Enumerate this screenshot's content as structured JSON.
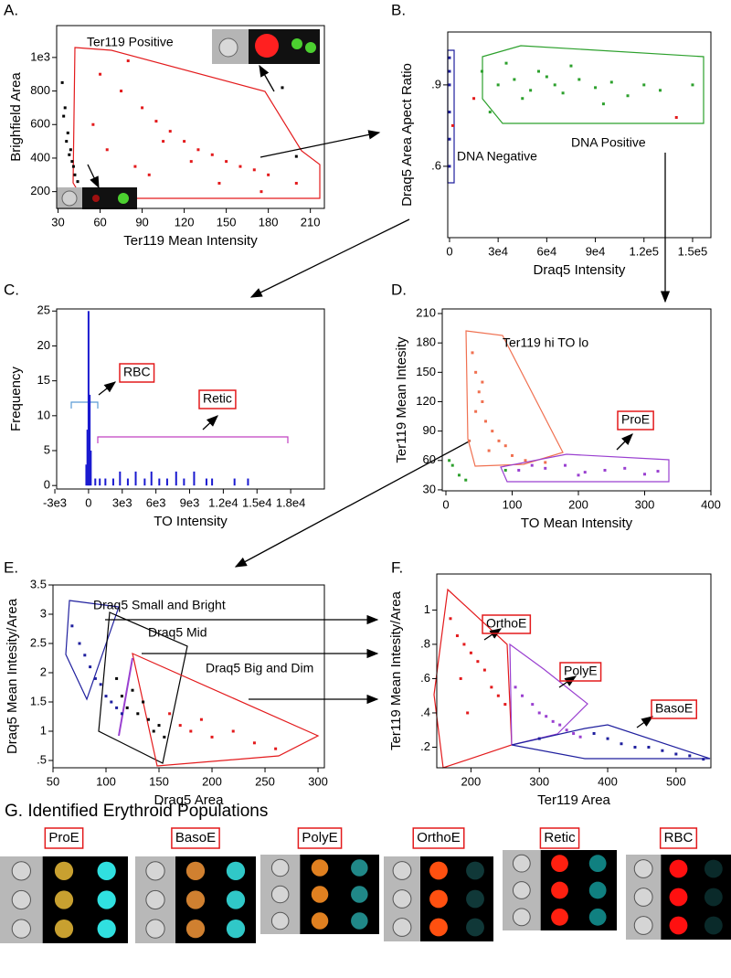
{
  "chart_data": [
    {
      "type": "scatter",
      "panel": "A.",
      "xlabel": "Ter119  Mean Intensity",
      "ylabel": "Brighfield Area",
      "xlim": [
        29,
        220
      ],
      "ylim": [
        100,
        1190
      ],
      "xticks": [
        30,
        60,
        90,
        120,
        150,
        180,
        210
      ],
      "yticks": [
        200,
        400,
        600,
        800,
        {
          "value": 1000,
          "label": "1e3"
        }
      ],
      "annotations": [
        {
          "text": "Ter119 Positive",
          "color": "#e31a1c"
        }
      ],
      "series": [
        {
          "color": "#000000",
          "x": [
            33,
            35,
            36,
            38,
            40,
            42,
            34,
            37,
            39,
            41,
            44,
            190,
            200
          ],
          "values": [
            850,
            700,
            500,
            420,
            380,
            300,
            650,
            550,
            450,
            350,
            260,
            820,
            410
          ]
        },
        {
          "color": "#e31a1c",
          "x": [
            60,
            75,
            90,
            100,
            110,
            120,
            130,
            140,
            150,
            160,
            170,
            180,
            55,
            65,
            85,
            95,
            105,
            125,
            145,
            175,
            200,
            80
          ],
          "values": [
            900,
            800,
            700,
            620,
            560,
            500,
            450,
            420,
            380,
            350,
            330,
            300,
            600,
            450,
            350,
            300,
            500,
            380,
            250,
            200,
            250,
            980
          ]
        }
      ]
    },
    {
      "type": "scatter",
      "panel": "B.",
      "xlabel": "Draq5 Intensity",
      "ylabel": "Draq5 Area Apect Ratio",
      "xlim": [
        -1100,
        161300
      ],
      "ylim": [
        0.337,
        1.095
      ],
      "xticks": [
        0,
        {
          "value": 30000,
          "label": "3e4"
        },
        {
          "value": 60000,
          "label": "6e4"
        },
        {
          "value": 90000,
          "label": "9e4"
        },
        {
          "value": 120000,
          "label": "1.2e5"
        },
        {
          "value": 150000,
          "label": "1.5e5"
        }
      ],
      "yticks": [
        {
          "value": 0.6,
          "label": ".6"
        },
        {
          "value": 0.9,
          "label": ".9"
        }
      ],
      "annotations": [
        {
          "text": "DNA Positive",
          "color": "#2ca02c"
        },
        {
          "text": "DNA Negative",
          "color": "#1f1f9e"
        }
      ],
      "series": [
        {
          "color": "#2ca02c",
          "x": [
            20000,
            30000,
            40000,
            50000,
            55000,
            60000,
            65000,
            70000,
            80000,
            90000,
            100000,
            110000,
            120000,
            35000,
            45000,
            75000,
            95000,
            130000,
            25000,
            150000
          ],
          "values": [
            0.95,
            0.9,
            0.92,
            0.88,
            0.95,
            0.93,
            0.9,
            0.87,
            0.92,
            0.89,
            0.91,
            0.86,
            0.9,
            0.98,
            0.85,
            0.97,
            0.83,
            0.88,
            0.8,
            0.9
          ]
        },
        {
          "color": "#1f1f9e",
          "x": [
            0,
            0,
            0,
            0,
            0,
            0
          ],
          "values": [
            1.0,
            0.95,
            0.9,
            0.8,
            0.7,
            0.6
          ]
        },
        {
          "color": "#e31a1c",
          "x": [
            15000,
            2000,
            140000
          ],
          "values": [
            0.85,
            0.75,
            0.78
          ]
        }
      ]
    },
    {
      "type": "bar",
      "panel": "C.",
      "xlabel": "TO Intensity",
      "ylabel": "Frequency",
      "xlim": [
        -2840,
        21000
      ],
      "ylim": [
        -0.5,
        25.3
      ],
      "xticks": [
        {
          "value": -3000,
          "label": "-3e3"
        },
        0,
        {
          "value": 3000,
          "label": "3e3"
        },
        {
          "value": 6000,
          "label": "6e3"
        },
        {
          "value": 9000,
          "label": "9e3"
        },
        {
          "value": 12000,
          "label": "1.2e4"
        },
        {
          "value": 15000,
          "label": "1.5e4"
        },
        {
          "value": 18000,
          "label": "1.8e4"
        }
      ],
      "yticks": [
        0,
        5,
        10,
        15,
        20,
        25
      ],
      "annotations": [
        {
          "text": "RBC",
          "color": "#000000",
          "boxed": true
        },
        {
          "text": "Retic",
          "color": "#000000",
          "boxed": true
        }
      ],
      "series": [
        {
          "color": "#1a1ad0",
          "x": [
            -200,
            -100,
            0,
            100,
            200,
            600,
            1000,
            1500,
            2200,
            2800,
            3500,
            4200,
            5000,
            5600,
            6300,
            7000,
            7800,
            8500,
            9400,
            10500,
            11000,
            13000,
            14200
          ],
          "values": [
            3,
            8,
            25,
            13,
            5,
            1,
            1,
            1,
            1,
            2,
            1,
            2,
            1,
            2,
            1,
            1,
            2,
            1,
            2,
            1,
            1,
            1,
            1
          ]
        }
      ]
    },
    {
      "type": "scatter",
      "panel": "D.",
      "xlabel": "TO Mean Intensity",
      "ylabel": "Ter119 Mean Intesity",
      "xlim": [
        -5.5,
        400
      ],
      "ylim": [
        29,
        214.7
      ],
      "xticks": [
        0,
        100,
        200,
        300,
        400
      ],
      "yticks": [
        30,
        60,
        90,
        120,
        150,
        180,
        210
      ],
      "annotations": [
        {
          "text": "Ter119 hi TO lo",
          "color": "#e31a1c"
        },
        {
          "text": "ProE",
          "color": "#000000",
          "boxed": true
        }
      ],
      "series": [
        {
          "color": "#f07050",
          "x": [
            40,
            45,
            50,
            55,
            60,
            70,
            80,
            90,
            100,
            45,
            55,
            65,
            35,
            120,
            150
          ],
          "values": [
            170,
            150,
            130,
            120,
            100,
            90,
            80,
            75,
            65,
            110,
            140,
            70,
            80,
            60,
            58
          ]
        },
        {
          "color": "#9a40d0",
          "x": [
            110,
            150,
            180,
            210,
            240,
            270,
            300,
            320,
            130,
            200
          ],
          "values": [
            50,
            52,
            55,
            48,
            50,
            52,
            46,
            49,
            55,
            45
          ]
        },
        {
          "color": "#2ca02c",
          "x": [
            5,
            20,
            10,
            30,
            90
          ],
          "values": [
            60,
            45,
            55,
            40,
            50
          ]
        }
      ]
    },
    {
      "type": "scatter",
      "panel": "E.",
      "xlabel": "Draq5 Area",
      "ylabel": "Draq5 Mean Intesity/Area",
      "xlim": [
        50,
        306
      ],
      "ylim": [
        0.375,
        3.5
      ],
      "xticks": [
        50,
        100,
        150,
        200,
        250,
        300
      ],
      "yticks": [
        {
          "value": 0.5,
          "label": ".5"
        },
        1,
        1.5,
        2,
        2.5,
        3,
        3.5
      ],
      "annotations": [
        {
          "text": "Draq5 Small and Bright",
          "color": "#1f1f9e"
        },
        {
          "text": "Draq5 Mid",
          "color": "#000000"
        },
        {
          "text": "Draq5 Big and Dim",
          "color": "#e31a1c"
        }
      ],
      "series": [
        {
          "color": "#1f1f9e",
          "x": [
            68,
            75,
            80,
            85,
            90,
            95,
            100,
            105,
            110,
            115
          ],
          "values": [
            2.8,
            2.5,
            2.3,
            2.1,
            1.9,
            1.8,
            1.6,
            1.5,
            1.4,
            1.3
          ]
        },
        {
          "color": "#000000",
          "x": [
            110,
            115,
            120,
            125,
            130,
            135,
            140,
            145,
            150,
            155
          ],
          "values": [
            1.9,
            1.6,
            1.4,
            1.7,
            1.3,
            1.5,
            1.2,
            1.0,
            1.1,
            0.9
          ]
        },
        {
          "color": "#e31a1c",
          "x": [
            160,
            170,
            180,
            190,
            200,
            220,
            240,
            260
          ],
          "values": [
            1.3,
            1.1,
            1.0,
            1.2,
            0.9,
            1.0,
            0.8,
            0.7
          ]
        }
      ]
    },
    {
      "type": "scatter",
      "panel": "F.",
      "xlabel": "Ter119  Area",
      "ylabel": "Ter119 Mean Intesity/Area",
      "xlim": [
        150,
        551
      ],
      "ylim": [
        0.08,
        1.21
      ],
      "xticks": [
        200,
        300,
        400,
        500
      ],
      "yticks": [
        {
          "value": 0.2,
          "label": ".2"
        },
        {
          "value": 0.4,
          "label": ".4"
        },
        {
          "value": 0.6,
          "label": ".6"
        },
        {
          "value": 0.8,
          "label": ".8"
        },
        1
      ],
      "annotations": [
        {
          "text": "OrthoE",
          "color": "#000000",
          "boxed": true
        },
        {
          "text": "PolyE",
          "color": "#000000",
          "boxed": true
        },
        {
          "text": "BasoE",
          "color": "#000000",
          "boxed": true
        }
      ],
      "series": [
        {
          "color": "#e31a1c",
          "x": [
            170,
            180,
            190,
            200,
            210,
            220,
            230,
            240,
            250,
            185,
            195
          ],
          "values": [
            0.95,
            0.85,
            0.8,
            0.75,
            0.7,
            0.65,
            0.55,
            0.5,
            0.45,
            0.6,
            0.4
          ]
        },
        {
          "color": "#9a40d0",
          "x": [
            265,
            275,
            290,
            300,
            310,
            320,
            330,
            340,
            350,
            360
          ],
          "values": [
            0.55,
            0.5,
            0.45,
            0.4,
            0.38,
            0.35,
            0.33,
            0.3,
            0.28,
            0.26
          ]
        },
        {
          "color": "#1f1f9e",
          "x": [
            380,
            400,
            420,
            440,
            460,
            480,
            500,
            520,
            540,
            300
          ],
          "values": [
            0.28,
            0.25,
            0.22,
            0.2,
            0.2,
            0.18,
            0.16,
            0.15,
            0.13,
            0.25
          ]
        }
      ]
    }
  ],
  "panel_g": {
    "title": "G. Identified Erythroid Populations",
    "populations": [
      "ProE",
      "BasoE",
      "PolyE",
      "OrthoE",
      "Retic",
      "RBC"
    ]
  }
}
